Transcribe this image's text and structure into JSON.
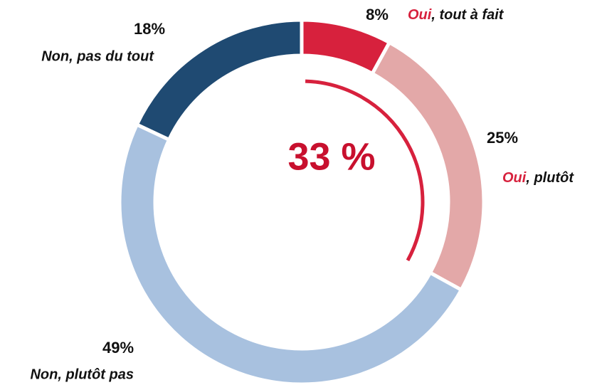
{
  "chart_data": {
    "type": "donut",
    "categories": [
      "Oui, tout à fait",
      "Oui, plutôt",
      "Non, plutôt pas",
      "Non, pas du tout"
    ],
    "values": [
      8,
      25,
      49,
      18
    ],
    "value_labels": [
      "8%",
      "25%",
      "49%",
      "18%"
    ],
    "colors": [
      "#d7213d",
      "#e3a8a8",
      "#a8c1df",
      "#1f4a72"
    ],
    "center_value": 33,
    "center_value_label": "33 %",
    "highlight_color": "#d7213d"
  }
}
